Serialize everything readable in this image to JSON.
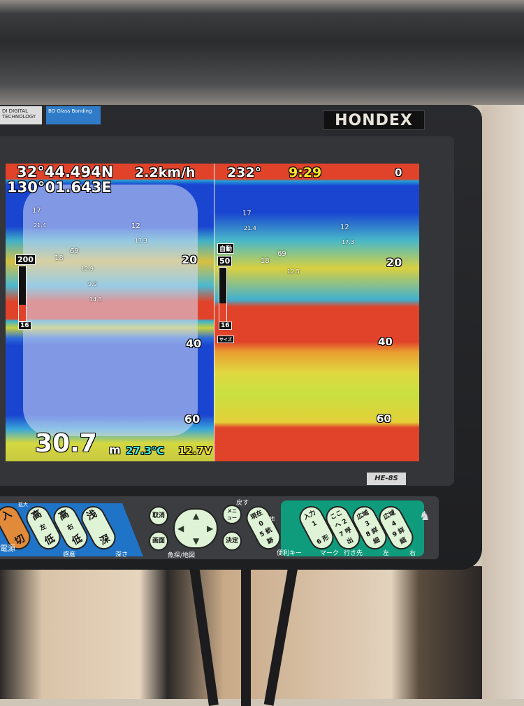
{
  "device": {
    "brand": "HONDEX",
    "model": "HE-8S",
    "badges": [
      "DI DIGITAL TECHNOLOGY",
      "BO Glass Bonding"
    ]
  },
  "status": {
    "latitude": "32°44.494N",
    "longitude": "130°01.643E",
    "speed": "2.2km/h",
    "heading": "232°",
    "time": "9:29",
    "top_depth": "0"
  },
  "left_pane": {
    "gain_max": "200",
    "gain_min": "16",
    "depth_marks": [
      "20",
      "40",
      "60"
    ],
    "fish_labels": [
      "17",
      "21.4",
      "12",
      "17.3",
      "69",
      "18",
      "12.9",
      "9.9",
      "14.3"
    ]
  },
  "right_pane": {
    "mode": "自動",
    "gain_max": "50",
    "gain_min": "16",
    "size_label": "サイズ",
    "depth_marks": [
      "20",
      "40",
      "60"
    ],
    "fish_labels": [
      "17",
      "21.4",
      "12",
      "17.3",
      "69",
      "18",
      "12.5"
    ]
  },
  "readout": {
    "depth": "30.7",
    "depth_unit": "m",
    "water_temp": "27.3℃",
    "voltage": "12.7V"
  },
  "keypad": {
    "power": {
      "top": "入",
      "bottom": "切",
      "label": "電源"
    },
    "zoom_label": "拡大",
    "gain_left": {
      "top": "高",
      "mid": "左",
      "bottom": "低"
    },
    "gain_right": {
      "top": "高",
      "mid": "右",
      "bottom": "低"
    },
    "gain_label": "感度",
    "depth_key": {
      "top": "浅",
      "bottom": "深"
    },
    "depth_label": "深さ",
    "cancel": "取消",
    "screen": "画面",
    "menu": "メニュー",
    "enter": "決定",
    "back_label": "戻す",
    "dpad_label": "魚探/地図",
    "current": {
      "top": "現在 0",
      "bottom": "5 航跡"
    },
    "map_label": "地",
    "shortcut_label": "便利キー",
    "input": {
      "top": "入力 1",
      "bottom": "6 形"
    },
    "here": {
      "top": "ここへ 2",
      "bottom": "7 呼出"
    },
    "wide_left": {
      "top": "広域 3",
      "bottom": "8 詳細"
    },
    "wide_right": {
      "top": "広域 4",
      "bottom": "9 詳細"
    },
    "mark_label": "マーク",
    "goto_label": "行き先",
    "left_label": "左",
    "right_label": "右"
  },
  "colors": {
    "strong_echo": "#e0432a",
    "medium_echo": "#e0d840",
    "weak_echo": "#40b0d0",
    "water": "#1a45d0",
    "keypad_blue": "#1f74c8",
    "keypad_green": "#0f9c7c"
  }
}
